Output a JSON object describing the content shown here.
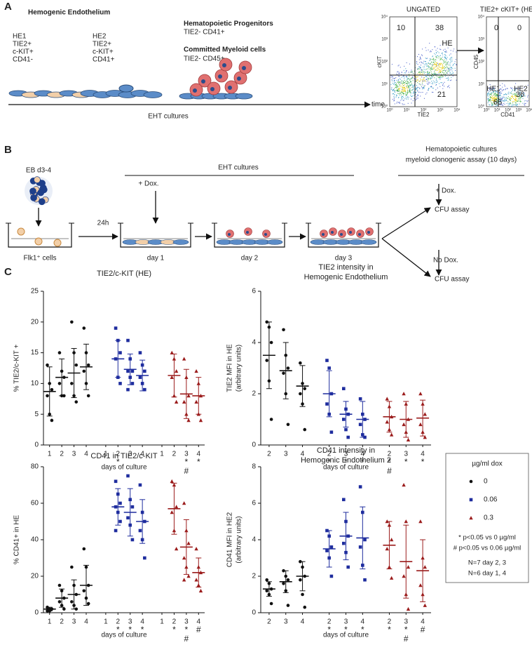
{
  "panel_a": {
    "label": "A",
    "he_title": "Hemogenic Endothelium",
    "he1": [
      "HE1",
      "TIE2+",
      "c-KIT+",
      "CD41-"
    ],
    "he2": [
      "HE2",
      "TIE2+",
      "c-KIT+",
      "CD41+"
    ],
    "progenitors": "Hematopoietic Progenitors",
    "progenitors_markers": "TIE2-  CD41+",
    "myeloid": "Committed  Myeloid cells",
    "myeloid_markers": "TIE2- CD45+",
    "timeline": "EHT cultures",
    "time": "time",
    "flow_ticks": [
      "10⁰",
      "10¹",
      "10²",
      "10³",
      "10⁴"
    ],
    "flow": [
      {
        "title": "UNGATED",
        "xlabel": "TIE2",
        "ylabel": "cKIT",
        "top_left": 10,
        "top_right": 38,
        "bottom_right": 21,
        "gate": "HE"
      },
      {
        "title": "TIE2+ cKIT+ (HE)",
        "xlabel": "CD41",
        "ylabel": "CD45",
        "top_left": 0,
        "top_right": 0,
        "bottom_left": 65,
        "bottom_right": 36,
        "gate_left": "HE1",
        "gate_right": "HE2"
      }
    ]
  },
  "panel_b": {
    "label": "B",
    "eb": "EB d3-4",
    "cells": "Flk1⁺ cells",
    "delay": "24h",
    "dox": "+ Dox.",
    "eht": "EHT cultures",
    "days": [
      "day 1",
      "day 2",
      "day 3"
    ],
    "hemato": [
      "Hematopoietic cultures",
      "myeloid clonogenic assay (10 days)"
    ],
    "plus_dox": "+ Dox.",
    "no_dox": "No Dox.",
    "assay": "CFU assay"
  },
  "panel_c": {
    "label": "C",
    "legend": {
      "title": "µg/ml dox",
      "names": [
        "0",
        "0.06",
        "0.3"
      ],
      "notes": [
        "* p<0.05 vs 0 µg/ml",
        "# p<0.05 vs 0.06 µg/ml",
        "N=7 day 2, 3",
        "N=6 day 1, 4"
      ]
    }
  },
  "chart_data": [
    {
      "type": "dot",
      "title": [
        "TIE2/c-KIT (HE)"
      ],
      "ylabel": [
        "% TIE2/c-KIT +"
      ],
      "xlabel": "days of culture",
      "ylim": [
        0,
        25
      ],
      "yticks": [
        0,
        5,
        10,
        15,
        20,
        25
      ],
      "categories": [
        "1",
        "2",
        "3",
        "4"
      ],
      "series": [
        {
          "color": "#111111",
          "marker": "circle",
          "points": [
            [
              13,
              10,
              9,
              8,
              5,
              4
            ],
            [
              15,
              12,
              11,
              10,
              8,
              8
            ],
            [
              20,
              15,
              13,
              10,
              8,
              7
            ],
            [
              19,
              15,
              13,
              12,
              10,
              8
            ]
          ],
          "means": [
            8.7,
            11,
            11.7,
            12.7
          ],
          "sds": [
            4,
            3,
            4,
            3.7
          ],
          "sig": [
            [],
            [],
            [],
            []
          ]
        },
        {
          "color": "#1f2d9e",
          "marker": "square",
          "points": [
            null,
            [
              19,
              17,
              15,
              14,
              11,
              10
            ],
            [
              17,
              14,
              12,
              12,
              11,
              10,
              9
            ],
            [
              15,
              13,
              12,
              11,
              10,
              9
            ]
          ],
          "means": [
            null,
            14,
            12.3,
            11.3
          ],
          "sds": [
            null,
            3,
            2.5,
            2.5
          ],
          "sig": [
            [],
            [
              "*"
            ],
            [],
            []
          ]
        },
        {
          "color": "#9b1c1c",
          "marker": "triangle",
          "points": [
            null,
            [
              15,
              14,
              12,
              11,
              8,
              7
            ],
            [
              14,
              11,
              8,
              7,
              5,
              4
            ],
            [
              12,
              10,
              8,
              7,
              5,
              4
            ]
          ],
          "means": [
            null,
            11.3,
            8.3,
            8
          ],
          "sds": [
            null,
            3.5,
            4,
            3
          ],
          "sig": [
            [],
            [],
            [
              "*",
              "#"
            ],
            [
              "*"
            ]
          ]
        }
      ]
    },
    {
      "type": "dot",
      "title": [
        "TIE2 intensity in",
        "Hemogenic Endothelium"
      ],
      "ylabel": [
        "TIE2 MFI in HE",
        "(arbitrary units)"
      ],
      "xlabel": "days of culture",
      "ylim": [
        0,
        6
      ],
      "yticks": [
        0,
        2,
        4,
        6
      ],
      "categories": [
        "2",
        "3",
        "4"
      ],
      "series": [
        {
          "color": "#111111",
          "marker": "circle",
          "points": [
            [
              4.8,
              4.6,
              4.0,
              3.3,
              2.5,
              1.0
            ],
            [
              4.5,
              3.5,
              3.0,
              2.8,
              2.0,
              0.8
            ],
            [
              3.2,
              2.4,
              2.2,
              2.0,
              1.6,
              0.6
            ]
          ],
          "means": [
            3.5,
            2.9,
            2.3
          ],
          "sds": [
            1.3,
            1.1,
            0.8
          ],
          "sig": [
            [],
            [],
            []
          ]
        },
        {
          "color": "#1f2d9e",
          "marker": "square",
          "points": [
            [
              3.3,
              3.0,
              2.0,
              1.6,
              1.2,
              0.5
            ],
            [
              2.2,
              1.4,
              1.2,
              1.0,
              0.6,
              0.3
            ],
            [
              1.8,
              1.2,
              1.0,
              0.8,
              0.4,
              0.3
            ]
          ],
          "means": [
            2.0,
            1.2,
            1.0
          ],
          "sds": [
            0.9,
            0.5,
            0.7
          ],
          "sig": [
            [
              "*"
            ],
            [
              "*"
            ],
            [
              "*"
            ]
          ]
        },
        {
          "color": "#9b1c1c",
          "marker": "triangle",
          "points": [
            [
              1.8,
              1.5,
              1.1,
              0.9,
              0.6,
              0.4
            ],
            [
              2.0,
              1.6,
              1.0,
              0.8,
              0.5,
              0.2
            ],
            [
              2.0,
              1.6,
              1.2,
              0.8,
              0.5,
              0.3
            ]
          ],
          "means": [
            1.1,
            1.0,
            1.05
          ],
          "sds": [
            0.6,
            0.7,
            0.7
          ],
          "sig": [
            [
              "*",
              "#"
            ],
            [
              "*"
            ],
            [
              "*"
            ]
          ]
        }
      ]
    },
    {
      "type": "dot",
      "title": [
        "CD41 in TIE2/c-KIT"
      ],
      "ylabel": [
        "% CD41+ in HE"
      ],
      "xlabel": "days of culture",
      "ylim": [
        0,
        80
      ],
      "yticks": [
        0,
        20,
        40,
        60,
        80
      ],
      "categories": [
        "1",
        "2",
        "3",
        "4"
      ],
      "series": [
        {
          "color": "#111111",
          "marker": "circle",
          "points": [
            [
              3,
              2,
              2,
              1,
              1
            ],
            [
              15,
              12,
              8,
              6,
              4,
              2
            ],
            [
              25,
              15,
              10,
              6,
              4,
              2
            ],
            [
              35,
              25,
              15,
              12,
              8,
              5
            ]
          ],
          "means": [
            2,
            8,
            10,
            15
          ],
          "sds": [
            1,
            5,
            8,
            11
          ],
          "sig": [
            [],
            [],
            [],
            []
          ]
        },
        {
          "color": "#1f2d9e",
          "marker": "square",
          "points": [
            null,
            [
              72,
              65,
              60,
              58,
              55,
              50,
              45
            ],
            [
              75,
              62,
              58,
              52,
              48,
              40
            ],
            [
              70,
              55,
              50,
              45,
              40,
              30
            ]
          ],
          "means": [
            null,
            58,
            55,
            50
          ],
          "sds": [
            null,
            10,
            13,
            12
          ],
          "sig": [
            [],
            [
              "*"
            ],
            [
              "*"
            ],
            [
              "*"
            ]
          ]
        },
        {
          "color": "#9b1c1c",
          "marker": "triangle",
          "points": [
            null,
            [
              72,
              70,
              58,
              55,
              45,
              35
            ],
            [
              60,
              45,
              38,
              30,
              25,
              20,
              18
            ],
            [
              35,
              25,
              22,
              18,
              15,
              12
            ]
          ],
          "means": [
            null,
            57,
            36,
            22
          ],
          "sds": [
            null,
            14,
            15,
            8
          ],
          "sig": [
            [],
            [
              "*"
            ],
            [
              "*",
              "#"
            ],
            [
              "#"
            ]
          ]
        }
      ]
    },
    {
      "type": "dot",
      "title": [
        "CD41 intensity in",
        "Hemogenic Endothelium 2"
      ],
      "ylabel": [
        "CD41 MFI in HE2",
        "(arbitrary units)"
      ],
      "xlabel": "days of culture",
      "ylim": [
        0,
        8
      ],
      "yticks": [
        0,
        2,
        4,
        6,
        8
      ],
      "categories": [
        "2",
        "3",
        "4"
      ],
      "series": [
        {
          "color": "#111111",
          "marker": "circle",
          "points": [
            [
              1.8,
              1.6,
              1.3,
              1.2,
              1.0,
              0.5
            ],
            [
              2.3,
              2.0,
              1.8,
              1.6,
              1.2,
              0.4
            ],
            [
              2.8,
              2.5,
              2.0,
              1.8,
              1.0,
              0.3
            ]
          ],
          "means": [
            1.3,
            1.7,
            2.0
          ],
          "sds": [
            0.4,
            0.6,
            0.8
          ],
          "sig": [
            [],
            [],
            []
          ]
        },
        {
          "color": "#1f2d9e",
          "marker": "square",
          "points": [
            [
              4.5,
              4.2,
              3.6,
              3.4,
              3.0,
              2.0
            ],
            [
              6.2,
              5.0,
              4.2,
              3.8,
              3.3,
              2.5
            ],
            [
              6.9,
              5.5,
              4.0,
              3.6,
              2.6,
              1.8
            ]
          ],
          "means": [
            3.5,
            4.2,
            4.1
          ],
          "sds": [
            1,
            1.3,
            1.7
          ],
          "sig": [
            [
              "*"
            ],
            [
              "*"
            ],
            [
              "*"
            ]
          ]
        },
        {
          "color": "#9b1c1c",
          "marker": "triangle",
          "points": [
            [
              5.0,
              4.8,
              4.0,
              3.5,
              2.5,
              1.9
            ],
            [
              7.0,
              5.0,
              2.5,
              2.0,
              1.0,
              0.2
            ],
            [
              5.0,
              3.0,
              2.5,
              1.5,
              1.0,
              0.4
            ]
          ],
          "means": [
            3.7,
            2.8,
            2.3
          ],
          "sds": [
            1.3,
            2,
            1.7
          ],
          "sig": [
            [
              "*"
            ],
            [
              "*",
              "#"
            ],
            [
              "#"
            ]
          ]
        }
      ]
    }
  ]
}
